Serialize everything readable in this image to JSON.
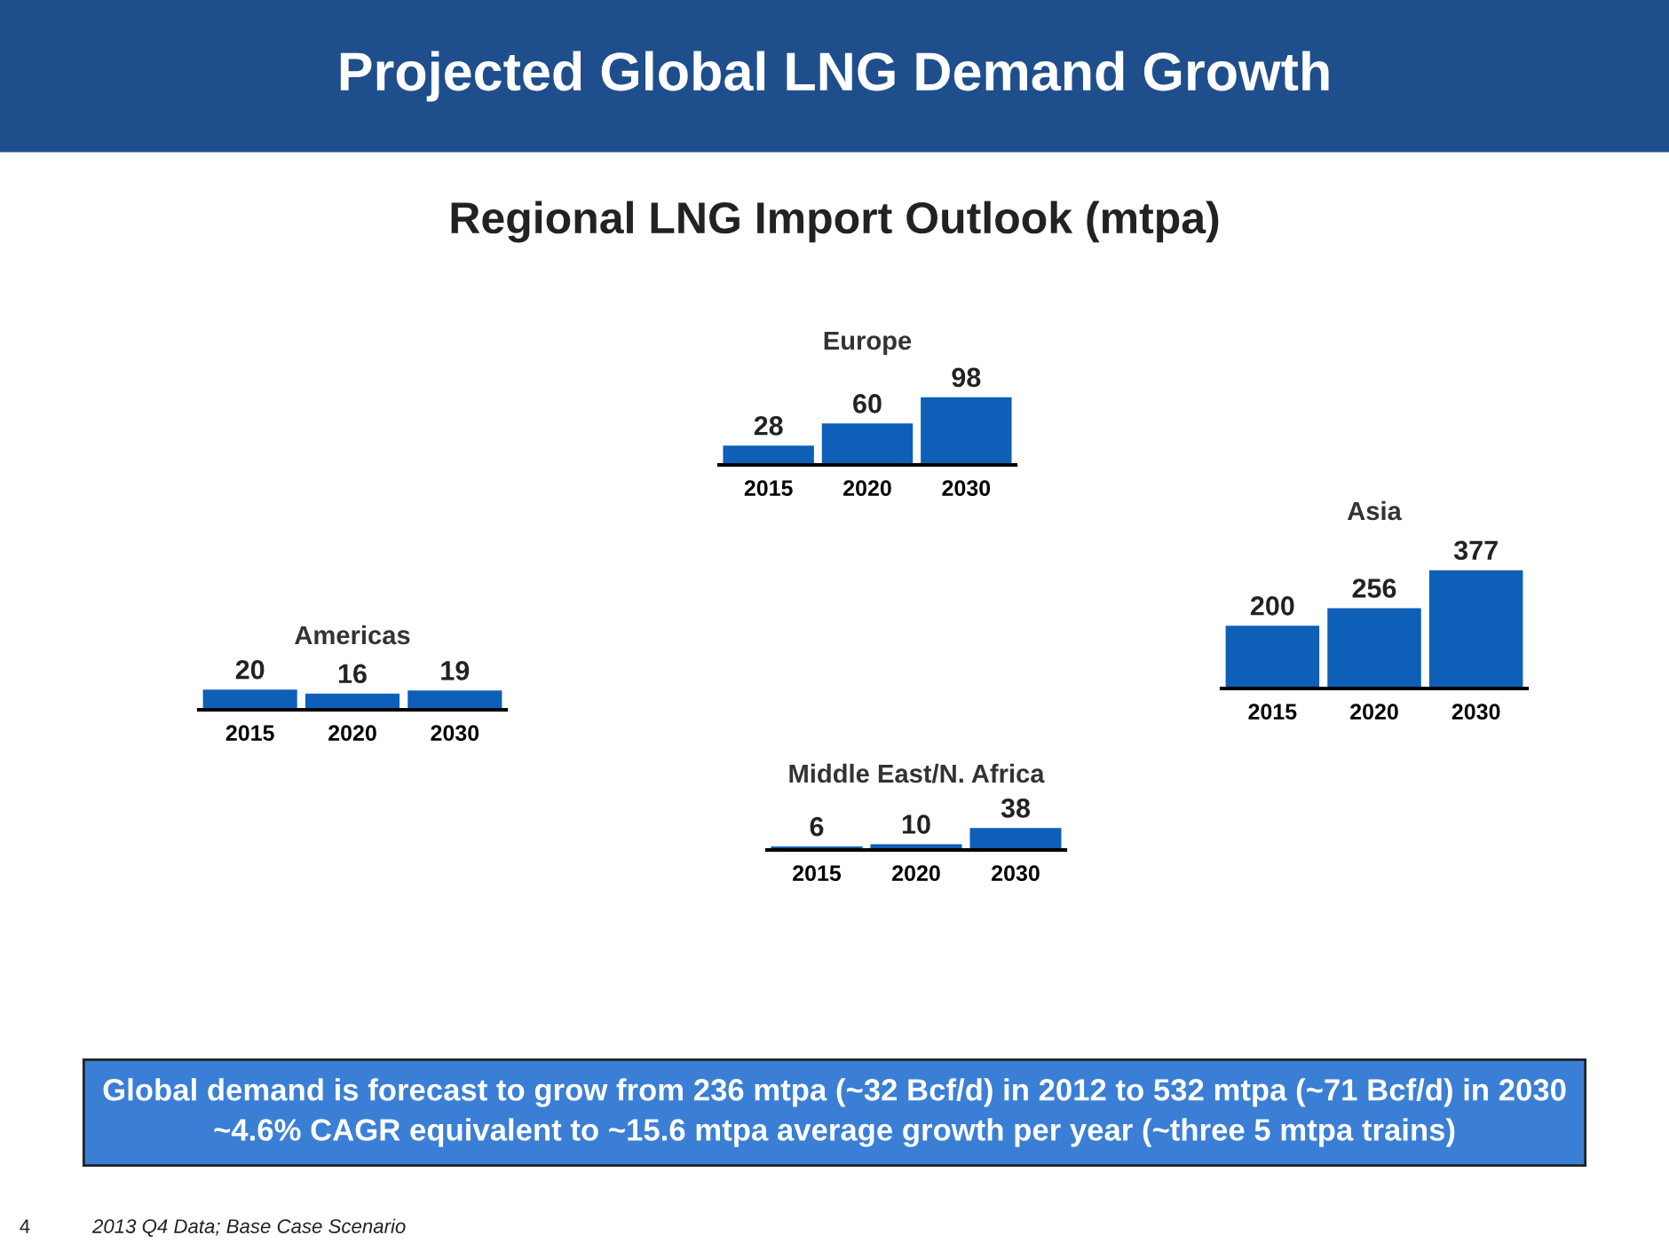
{
  "chart_data": [
    {
      "type": "other",
      "title": "Projected Global LNG Demand Growth",
      "subtitle": "Regional LNG Import Outlook (mtpa)",
      "annotations": [
        "Global demand is forecast to grow from 236 mtpa (~32 Bcf/d) in 2012 to 532 mtpa (~71 Bcf/d) in 2030\n~4.6% CAGR equivalent to ~15.6 mtpa average growth per year (~three 5 mtpa trains)",
        "2013 Q4 Data; Base Case Scenario",
        "4"
      ]
    },
    {
      "type": "bar",
      "title": "Europe",
      "categories": [
        "2015",
        "2020",
        "2030"
      ],
      "values": [
        28,
        60,
        98
      ],
      "color": "#0d5fb8",
      "data_labels": true,
      "tick_labels": "x"
    },
    {
      "type": "bar",
      "title": "Asia",
      "categories": [
        "2015",
        "2020",
        "2030"
      ],
      "values": [
        200,
        256,
        377
      ],
      "color": "#0d5fb8",
      "data_labels": true,
      "tick_labels": "x"
    },
    {
      "type": "bar",
      "title": "Americas",
      "categories": [
        "2015",
        "2020",
        "2030"
      ],
      "values": [
        20,
        16,
        19
      ],
      "color": "#0d5fb8",
      "data_labels": true,
      "tick_labels": "x"
    },
    {
      "type": "bar",
      "title": "Middle East/N. Africa",
      "categories": [
        "2015",
        "2020",
        "2030"
      ],
      "values": [
        6,
        10,
        38
      ],
      "color": "#0d5fb8",
      "data_labels": true,
      "tick_labels": "x"
    }
  ]
}
